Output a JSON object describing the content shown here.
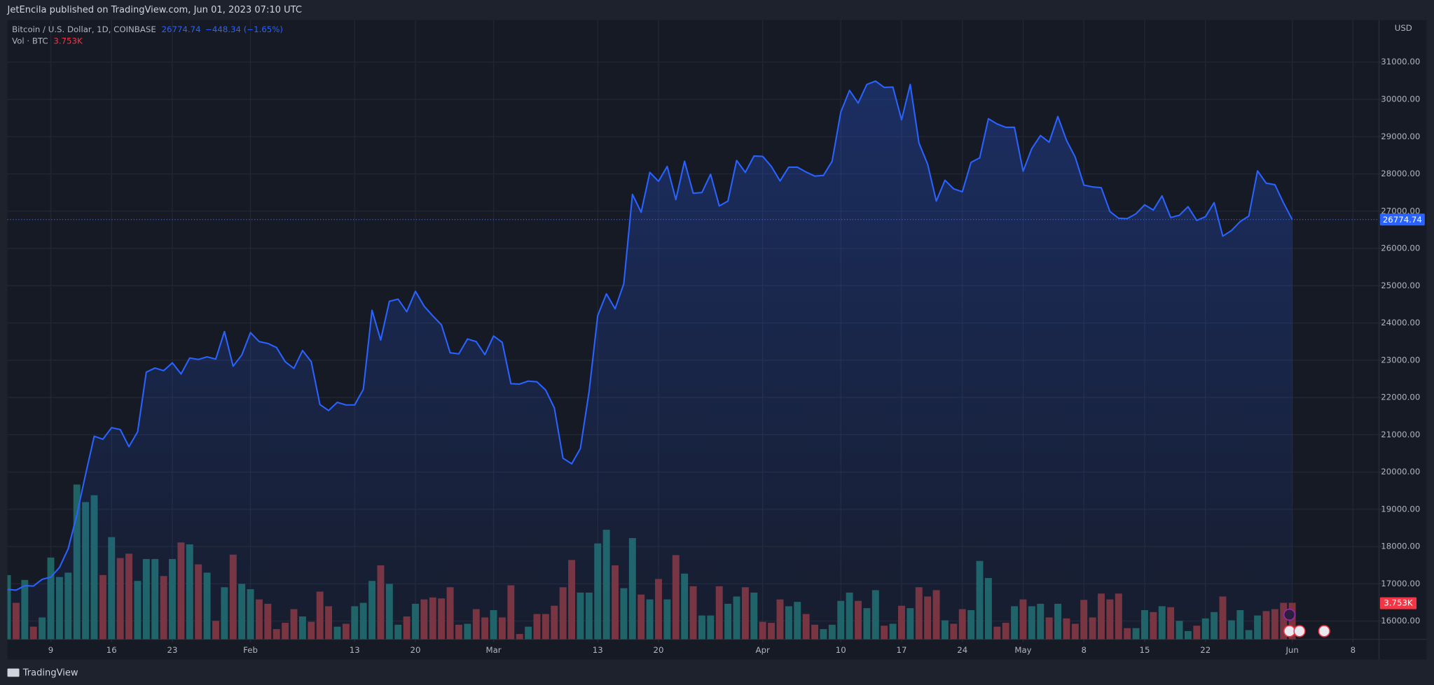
{
  "header": {
    "published": "JetEncila published on TradingView.com, Jun 01, 2023 07:10 UTC"
  },
  "footer": {
    "brand": "TradingView"
  },
  "chart_data": {
    "type": "area",
    "y_axis_label": "USD",
    "change": "−448.34 (−1.65%)",
    "grid": true,
    "x": [
      "01-04",
      "01-05",
      "01-06",
      "01-07",
      "01-08",
      "01-09",
      "01-10",
      "01-11",
      "01-12",
      "01-13",
      "01-14",
      "01-15",
      "01-16",
      "01-17",
      "01-18",
      "01-19",
      "01-20",
      "01-21",
      "01-22",
      "01-23",
      "01-24",
      "01-25",
      "01-26",
      "01-27",
      "01-28",
      "01-29",
      "01-30",
      "01-31",
      "02-01",
      "02-02",
      "02-03",
      "02-04",
      "02-05",
      "02-06",
      "02-07",
      "02-08",
      "02-09",
      "02-10",
      "02-11",
      "02-12",
      "02-13",
      "02-14",
      "02-15",
      "02-16",
      "02-17",
      "02-18",
      "02-19",
      "02-20",
      "02-21",
      "02-22",
      "02-23",
      "02-24",
      "02-25",
      "02-26",
      "02-27",
      "02-28",
      "03-01",
      "03-02",
      "03-03",
      "03-04",
      "03-05",
      "03-06",
      "03-07",
      "03-08",
      "03-09",
      "03-10",
      "03-11",
      "03-12",
      "03-13",
      "03-14",
      "03-15",
      "03-16",
      "03-17",
      "03-18",
      "03-19",
      "03-20",
      "03-21",
      "03-22",
      "03-23",
      "03-24",
      "03-25",
      "03-26",
      "03-27",
      "03-28",
      "03-29",
      "03-30",
      "03-31",
      "04-01",
      "04-02",
      "04-03",
      "04-04",
      "04-05",
      "04-06",
      "04-07",
      "04-08",
      "04-09",
      "04-10",
      "04-11",
      "04-12",
      "04-13",
      "04-14",
      "04-15",
      "04-16",
      "04-17",
      "04-18",
      "04-19",
      "04-20",
      "04-21",
      "04-22",
      "04-23",
      "04-24",
      "04-25",
      "04-26",
      "04-27",
      "04-28",
      "04-29",
      "04-30",
      "05-01",
      "05-02",
      "05-03",
      "05-04",
      "05-05",
      "05-06",
      "05-07",
      "05-08",
      "05-09",
      "05-10",
      "05-11",
      "05-12",
      "05-13",
      "05-14",
      "05-15",
      "05-16",
      "05-17",
      "05-18",
      "05-19",
      "05-20",
      "05-21",
      "05-22",
      "05-23",
      "05-24",
      "05-25",
      "05-26",
      "05-27",
      "05-28",
      "05-29",
      "05-30",
      "05-31",
      "06-01"
    ],
    "xlim": [
      "01-04",
      "06-11"
    ],
    "xticks": [
      {
        "value": "01-09",
        "label": "9"
      },
      {
        "value": "01-16",
        "label": "16"
      },
      {
        "value": "01-23",
        "label": "23"
      },
      {
        "value": "02-01",
        "label": "Feb"
      },
      {
        "value": "02-13",
        "label": "13"
      },
      {
        "value": "02-20",
        "label": "20"
      },
      {
        "value": "03-01",
        "label": "Mar"
      },
      {
        "value": "03-13",
        "label": "13"
      },
      {
        "value": "03-20",
        "label": "20"
      },
      {
        "value": "04-01",
        "label": "Apr"
      },
      {
        "value": "04-10",
        "label": "10"
      },
      {
        "value": "04-17",
        "label": "17"
      },
      {
        "value": "04-24",
        "label": "24"
      },
      {
        "value": "05-01",
        "label": "May"
      },
      {
        "value": "05-08",
        "label": "8"
      },
      {
        "value": "05-15",
        "label": "15"
      },
      {
        "value": "05-22",
        "label": "22"
      },
      {
        "value": "06-01",
        "label": "Jun"
      },
      {
        "value": "06-08",
        "label": "8"
      }
    ],
    "ylim": [
      15510,
      32127
    ],
    "yticks": [
      {
        "value": 16000,
        "label": "16000.00"
      },
      {
        "value": 17000,
        "label": "17000.00"
      },
      {
        "value": 18000,
        "label": "18000.00"
      },
      {
        "value": 19000,
        "label": "19000.00"
      },
      {
        "value": 20000,
        "label": "20000.00"
      },
      {
        "value": 21000,
        "label": "21000.00"
      },
      {
        "value": 22000,
        "label": "22000.00"
      },
      {
        "value": 23000,
        "label": "23000.00"
      },
      {
        "value": 24000,
        "label": "24000.00"
      },
      {
        "value": 25000,
        "label": "25000.00"
      },
      {
        "value": 26000,
        "label": "26000.00"
      },
      {
        "value": 27000,
        "label": "27000.00"
      },
      {
        "value": 28000,
        "label": "28000.00"
      },
      {
        "value": 29000,
        "label": "29000.00"
      },
      {
        "value": 30000,
        "label": "30000.00"
      },
      {
        "value": 31000,
        "label": "31000.00"
      }
    ],
    "y2lim": [
      0,
      63600
    ],
    "series": [
      {
        "name": "Bitcoin / U.S. Dollar, 1D, COINBASE",
        "color": "#2962ff",
        "values": [
          16850,
          16830,
          16950,
          16940,
          17120,
          17180,
          17440,
          17940,
          18850,
          19930,
          20960,
          20880,
          21190,
          21140,
          20680,
          21080,
          22680,
          22790,
          22720,
          22930,
          22630,
          23060,
          23020,
          23090,
          23030,
          23770,
          22840,
          23140,
          23740,
          23500,
          23450,
          23340,
          22960,
          22780,
          23260,
          22960,
          21810,
          21650,
          21870,
          21800,
          21800,
          22220,
          24340,
          23540,
          24580,
          24640,
          24300,
          24850,
          24450,
          24190,
          23950,
          23200,
          23170,
          23570,
          23500,
          23150,
          23650,
          23480,
          22370,
          22360,
          22440,
          22420,
          22200,
          21720,
          20370,
          20220,
          20630,
          22150,
          24200,
          24780,
          24380,
          25050,
          27450,
          26970,
          28040,
          27800,
          28200,
          27310,
          28340,
          27480,
          27500,
          27990,
          27140,
          27270,
          28360,
          28040,
          28480,
          28470,
          28200,
          27810,
          28180,
          28180,
          28050,
          27940,
          27960,
          28340,
          29660,
          30240,
          29900,
          30400,
          30490,
          30320,
          30330,
          29450,
          30400,
          28830,
          28260,
          27270,
          27830,
          27600,
          27520,
          28310,
          28430,
          29480,
          29340,
          29250,
          29250,
          28070,
          28680,
          29030,
          28850,
          29540,
          28900,
          28450,
          27700,
          27650,
          27630,
          26990,
          26810,
          26800,
          26930,
          27170,
          27030,
          27410,
          26830,
          26890,
          27120,
          26750,
          26850,
          27230,
          26330,
          26480,
          26720,
          26870,
          28080,
          27750,
          27710,
          27220,
          26774.74
        ]
      },
      {
        "name": "Vol · BTC",
        "type": "bar",
        "axis": "y2",
        "up_color": "#1f6462",
        "down_color": "#7d3338",
        "last_label": "3.753K",
        "values": [
          6600,
          3750,
          6100,
          1300,
          2250,
          8400,
          6400,
          6850,
          15900,
          14100,
          14800,
          6600,
          10500,
          8350,
          8800,
          6000,
          8250,
          8250,
          6500,
          8250,
          9950,
          9750,
          7700,
          6850,
          1900,
          5350,
          8700,
          5700,
          5150,
          4100,
          3650,
          1050,
          1700,
          3100,
          2350,
          1800,
          4900,
          3400,
          1300,
          1600,
          3400,
          3750,
          6000,
          7600,
          5700,
          1500,
          2350,
          3650,
          4100,
          4300,
          4200,
          5350,
          1500,
          1600,
          3100,
          2250,
          3000,
          2250,
          5550,
          550,
          1300,
          2600,
          2600,
          3450,
          5350,
          8150,
          4800,
          4800,
          9850,
          11250,
          7600,
          5250,
          10400,
          4600,
          4100,
          6200,
          4100,
          8650,
          6750,
          5450,
          2450,
          2450,
          5450,
          3650,
          4400,
          5350,
          4800,
          1800,
          1700,
          4100,
          3400,
          3850,
          2600,
          1500,
          1050,
          1500,
          3950,
          4800,
          3950,
          3200,
          5050,
          1400,
          1600,
          3450,
          3200,
          5350,
          4400,
          5050,
          1950,
          1600,
          3100,
          3000,
          8050,
          6300,
          1300,
          1700,
          3400,
          4100,
          3400,
          3650,
          2250,
          3650,
          2150,
          1600,
          4050,
          2250,
          4700,
          4100,
          4700,
          1150,
          1150,
          3000,
          2800,
          3400,
          3300,
          1900,
          850,
          1400,
          2150,
          2800,
          4400,
          1950,
          3000,
          950,
          2450,
          2900,
          3100,
          3750,
          3753
        ]
      }
    ]
  }
}
